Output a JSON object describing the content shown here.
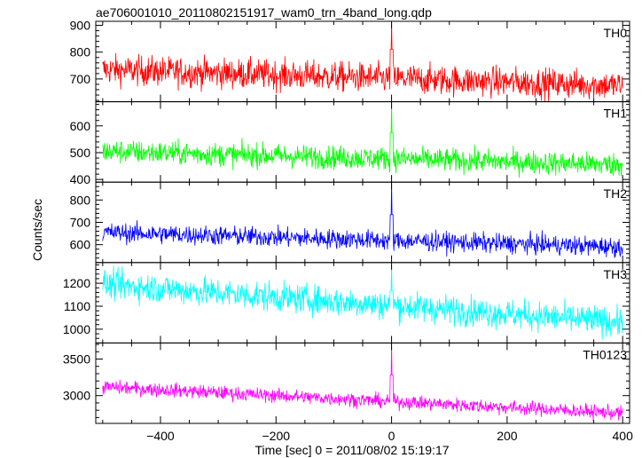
{
  "chart_data": {
    "type": "line",
    "title": "ae706001010_20110802151917_wam0_trn_4band_long.qdp",
    "xlabel": "Time [sec] 0 = 2011/08/02 15:19:17",
    "ylabel": "Counts/sec",
    "xlim": [
      -512,
      412
    ],
    "xticks": [
      -400,
      -200,
      0,
      200,
      400
    ],
    "grid": false,
    "legend": "none",
    "panels": [
      {
        "name": "TH0",
        "color": "#ff0000",
        "ylim": [
          615,
          915
        ],
        "yticks": [
          700,
          800,
          900
        ],
        "start": 735,
        "end": 675,
        "noise": 28,
        "peak_x": 0,
        "peak_y": 915,
        "peak_base": 725
      },
      {
        "name": "TH1",
        "color": "#00ff00",
        "ylim": [
          390,
          690
        ],
        "yticks": [
          400,
          500,
          600
        ],
        "start": 505,
        "end": 455,
        "noise": 22,
        "peak_x": 0,
        "peak_y": 690,
        "peak_base": 480
      },
      {
        "name": "TH2",
        "color": "#0000ff",
        "ylim": [
          520,
          880
        ],
        "yticks": [
          600,
          700,
          800
        ],
        "start": 655,
        "end": 590,
        "noise": 22,
        "peak_x": 0,
        "peak_y": 880,
        "peak_base": 615
      },
      {
        "name": "TH3",
        "color": "#00ffff",
        "ylim": [
          940,
          1290
        ],
        "yticks": [
          1000,
          1100,
          1200
        ],
        "start": 1195,
        "end": 1030,
        "noise": 32,
        "peak_x": 0,
        "peak_y": 1290,
        "peak_base": 1070
      },
      {
        "name": "TH0123",
        "color": "#ff00ff",
        "ylim": [
          2620,
          3720
        ],
        "yticks": [
          3000,
          3500
        ],
        "start": 3120,
        "end": 2760,
        "noise": 48,
        "peak_x": 0,
        "peak_y": 3720,
        "peak_base": 2920
      }
    ]
  }
}
